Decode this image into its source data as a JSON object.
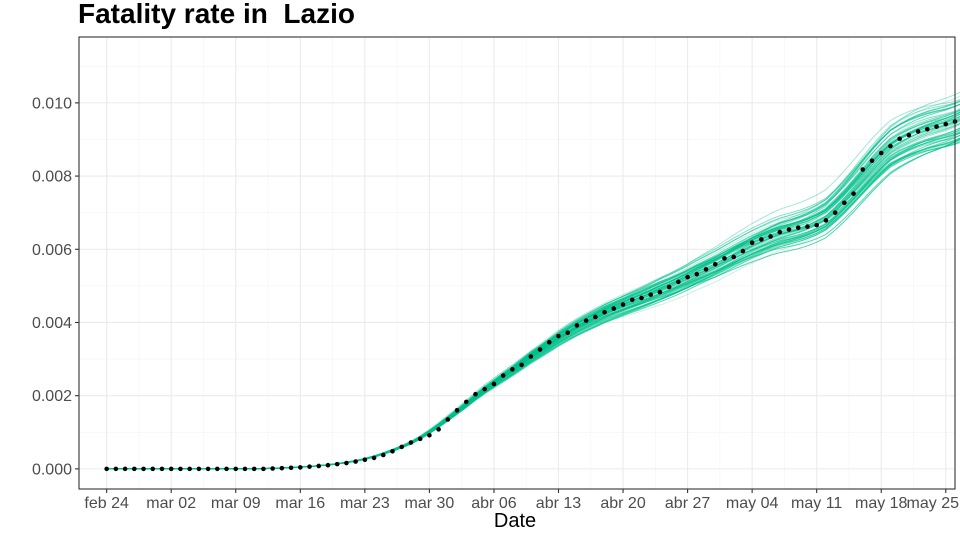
{
  "chart_data": {
    "type": "line",
    "title": "Fatality rate in  Lazio",
    "xlabel": "Date",
    "ylabel": "",
    "x_start": "2020-02-24",
    "x_end": "2020-05-22",
    "xlim": [
      "2020-02-21",
      "2020-05-26"
    ],
    "ylim": [
      -0.00055,
      0.0118
    ],
    "grid": true,
    "legend": "none",
    "x_ticks": [
      "feb 24",
      "mar 02",
      "mar 09",
      "mar 16",
      "mar 23",
      "mar 30",
      "abr 06",
      "abr 13",
      "abr 20",
      "abr 27",
      "may 04",
      "may 11",
      "may 18",
      "may 25"
    ],
    "y_ticks": [
      "0.000",
      "0.002",
      "0.004",
      "0.006",
      "0.008",
      "0.010"
    ],
    "series": [
      {
        "style": "points",
        "color": "#000000",
        "values": [
          0,
          0,
          0,
          0,
          0,
          0,
          0,
          0,
          0,
          0,
          0,
          0,
          0,
          0,
          0,
          0,
          0,
          0,
          1e-05,
          2e-05,
          3e-05,
          4e-05,
          6e-05,
          8e-05,
          0.0001,
          0.00013,
          0.00016,
          0.0002,
          0.00025,
          0.0003,
          0.00038,
          0.00048,
          0.0006,
          0.00072,
          0.00082,
          0.00092,
          0.00108,
          0.00135,
          0.0016,
          0.00183,
          0.00204,
          0.00218,
          0.00232,
          0.00255,
          0.00272,
          0.00284,
          0.00307,
          0.00326,
          0.00346,
          0.00363,
          0.00372,
          0.00392,
          0.00405,
          0.00415,
          0.00428,
          0.00438,
          0.00449,
          0.00462,
          0.00467,
          0.00476,
          0.00483,
          0.00497,
          0.00511,
          0.00524,
          0.00532,
          0.00545,
          0.00559,
          0.00575,
          0.00579,
          0.00595,
          0.00618,
          0.00627,
          0.00635,
          0.00647,
          0.00654,
          0.00659,
          0.00662,
          0.00666,
          0.00679,
          0.007,
          0.00727,
          0.00752,
          0.00818,
          0.00842,
          0.00863,
          0.00882,
          0.00902,
          0.00912,
          0.00922,
          0.00928,
          0.00935,
          0.00942,
          0.00949,
          0.00955,
          0.00962,
          0.00985,
          0.0101,
          0.01028
        ]
      },
      {
        "style": "simulation-envelope",
        "color": "#00c08b",
        "count": 60
      }
    ]
  }
}
